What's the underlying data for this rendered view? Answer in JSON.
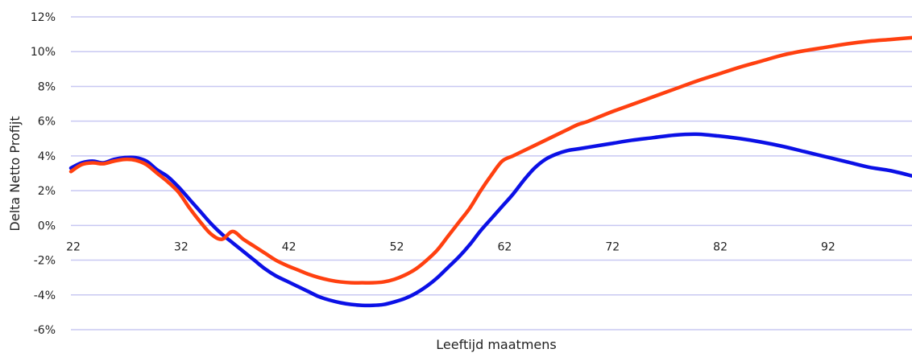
{
  "chart_data": {
    "type": "line",
    "title": "",
    "xlabel": "Leeftijd maatmens",
    "ylabel": "Delta Netto Profijt",
    "xlim": [
      22,
      100
    ],
    "ylim": [
      -6,
      12
    ],
    "x_ticks": [
      22,
      32,
      42,
      52,
      62,
      72,
      82,
      92
    ],
    "x_tick_labels": [
      "22",
      "32",
      "42",
      "52",
      "62",
      "72",
      "82",
      "92"
    ],
    "y_ticks": [
      -6,
      -4,
      -2,
      0,
      2,
      4,
      6,
      8,
      10,
      12
    ],
    "y_tick_labels": [
      "-6%",
      "-4%",
      "-2%",
      "0%",
      "2%",
      "4%",
      "6%",
      "8%",
      "10%",
      "12%"
    ],
    "grid": true,
    "legend": "none",
    "series": [
      {
        "color": "#0b10e6",
        "x": [
          22,
          23,
          24,
          25,
          26,
          27,
          28,
          29,
          30,
          31,
          32,
          33,
          34,
          35,
          36,
          37,
          38,
          39,
          40,
          41,
          42,
          43,
          44,
          45,
          46,
          47,
          48,
          49,
          50,
          51,
          52,
          53,
          54,
          55,
          56,
          57,
          58,
          59,
          60,
          61,
          62,
          63,
          64,
          65,
          66,
          67,
          68,
          69,
          70,
          72,
          74,
          76,
          78,
          80,
          82,
          84,
          86,
          88,
          90,
          92,
          94,
          96,
          98,
          100
        ],
        "y": [
          3.3,
          3.6,
          3.7,
          3.6,
          3.8,
          3.9,
          3.9,
          3.7,
          3.2,
          2.8,
          2.2,
          1.5,
          0.8,
          0.1,
          -0.5,
          -1.0,
          -1.5,
          -2.0,
          -2.5,
          -2.9,
          -3.2,
          -3.5,
          -3.8,
          -4.1,
          -4.3,
          -4.45,
          -4.55,
          -4.6,
          -4.6,
          -4.55,
          -4.4,
          -4.2,
          -3.9,
          -3.5,
          -3.0,
          -2.4,
          -1.8,
          -1.1,
          -0.3,
          0.4,
          1.1,
          1.8,
          2.6,
          3.3,
          3.8,
          4.1,
          4.3,
          4.4,
          4.5,
          4.7,
          4.9,
          5.05,
          5.2,
          5.25,
          5.15,
          5.0,
          4.8,
          4.55,
          4.25,
          3.95,
          3.65,
          3.35,
          3.15,
          2.85
        ]
      },
      {
        "color": "#ff4010",
        "x": [
          22,
          23,
          24,
          25,
          26,
          27,
          28,
          29,
          30,
          31,
          32,
          33,
          34,
          35,
          36,
          37,
          38,
          39,
          40,
          41,
          42,
          43,
          44,
          45,
          46,
          47,
          48,
          49,
          50,
          51,
          52,
          53,
          54,
          55,
          56,
          57,
          58,
          59,
          60,
          61,
          62,
          63,
          64,
          65,
          66,
          67,
          68,
          69,
          70,
          72,
          74,
          76,
          78,
          80,
          82,
          84,
          86,
          88,
          90,
          92,
          94,
          96,
          98,
          100
        ],
        "y": [
          3.1,
          3.5,
          3.6,
          3.55,
          3.7,
          3.8,
          3.75,
          3.5,
          3.0,
          2.5,
          1.9,
          1.0,
          0.2,
          -0.5,
          -0.8,
          -0.35,
          -0.8,
          -1.2,
          -1.6,
          -2.0,
          -2.3,
          -2.55,
          -2.8,
          -3.0,
          -3.15,
          -3.25,
          -3.3,
          -3.3,
          -3.3,
          -3.25,
          -3.1,
          -2.85,
          -2.5,
          -2.0,
          -1.4,
          -0.6,
          0.2,
          1.0,
          2.0,
          2.9,
          3.7,
          4.0,
          4.3,
          4.6,
          4.9,
          5.2,
          5.5,
          5.8,
          6.0,
          6.5,
          6.95,
          7.4,
          7.85,
          8.3,
          8.7,
          9.1,
          9.45,
          9.8,
          10.05,
          10.25,
          10.45,
          10.6,
          10.7,
          10.8
        ]
      }
    ]
  }
}
